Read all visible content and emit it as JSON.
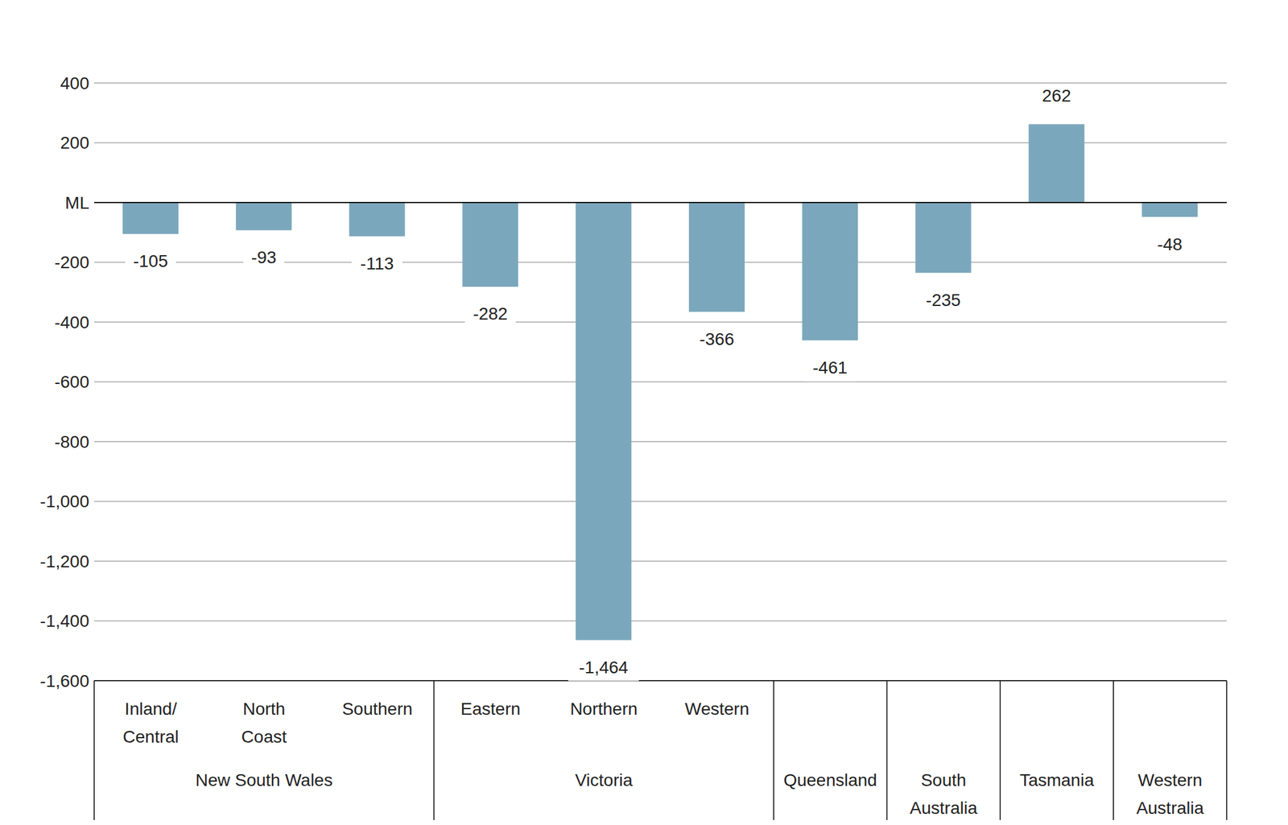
{
  "chart_data": {
    "type": "bar",
    "categories": [
      "Inland/ Central",
      "North Coast",
      "Southern",
      "Eastern",
      "Northern",
      "Western",
      null,
      null,
      null,
      null
    ],
    "group_labels": [
      "New South Wales",
      "New South Wales",
      "New South Wales",
      "Victoria",
      "Victoria",
      "Victoria",
      "Queensland",
      "South Australia",
      "Tasmania",
      "Western Australia"
    ],
    "values": [
      -105,
      -93,
      -113,
      -282,
      -1464,
      -366,
      -461,
      -235,
      262,
      -48
    ],
    "value_labels": [
      "-105",
      "-93",
      "-113",
      "-282",
      "-1,464",
      "-366",
      "-461",
      "-235",
      "262",
      "-48"
    ],
    "color": "#7BA7BC",
    "ylim": [
      -1600,
      400
    ],
    "yticks": [
      {
        "value": -1600,
        "label": "-1,600"
      },
      {
        "value": -1400,
        "label": "-1,400"
      },
      {
        "value": -1200,
        "label": "-1,200"
      },
      {
        "value": -1000,
        "label": "-1,000"
      },
      -800,
      -600,
      -400,
      -200,
      {
        "value": 0,
        "label": "ML"
      },
      200,
      400
    ],
    "grid": true,
    "data_labels": true
  }
}
